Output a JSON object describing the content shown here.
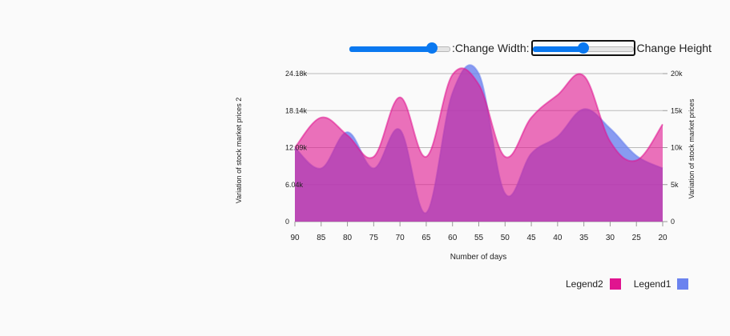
{
  "controls": {
    "width_label": ":Change Width:",
    "height_label": "Change Height",
    "width_slider_value": 0.82,
    "height_slider_value": 0.5
  },
  "colors": {
    "legend1": "#6b83ef",
    "legend2": "#e0148f"
  },
  "chart_data": {
    "type": "area",
    "x": [
      90,
      85,
      80,
      75,
      70,
      65,
      60,
      55,
      50,
      45,
      40,
      35,
      30,
      25,
      20
    ],
    "xlim": [
      90,
      20
    ],
    "xlabel": "Number of days",
    "ylabel_left": "Variation of stock market prices 2",
    "ylabel_right": "Variation of stock market prices",
    "y_left_ticks": [
      "0",
      "6.04k",
      "12.09k",
      "18.14k",
      "24.18k"
    ],
    "y_left_lim": [
      0,
      24180
    ],
    "y_right_ticks": [
      "0",
      "5k",
      "10k",
      "15k",
      "20k"
    ],
    "y_right_lim": [
      0,
      20000
    ],
    "x_ticks": [
      "90",
      "85",
      "80",
      "75",
      "70",
      "65",
      "60",
      "55",
      "50",
      "45",
      "40",
      "35",
      "30",
      "25",
      "20"
    ],
    "grid": true,
    "legend_position": "bottom-right",
    "series": [
      {
        "name": "Legend2",
        "axis": "left",
        "values": [
          12100,
          17000,
          14100,
          10600,
          20300,
          10600,
          24000,
          22400,
          10600,
          17000,
          20700,
          23800,
          13100,
          10000,
          15900
        ]
      },
      {
        "name": "Legend1",
        "axis": "right",
        "values": [
          10000,
          7200,
          12100,
          7200,
          12400,
          1200,
          17400,
          20000,
          3800,
          9200,
          11500,
          15200,
          12600,
          8900,
          7200
        ]
      }
    ]
  }
}
